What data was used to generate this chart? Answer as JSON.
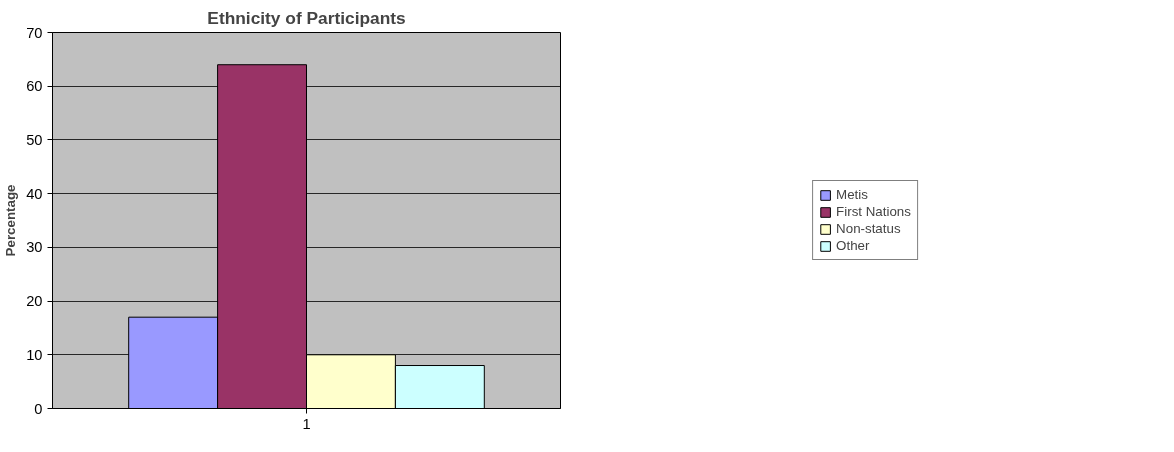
{
  "chart_data": {
    "type": "bar",
    "title": "Ethnicity of Participants",
    "ylabel": "Percentage",
    "categories": [
      "1"
    ],
    "series": [
      {
        "name": "Metis",
        "color": "#9999ff",
        "values": [
          17
        ]
      },
      {
        "name": "First Nations",
        "color": "#993366",
        "values": [
          64
        ]
      },
      {
        "name": "Non-status",
        "color": "#ffffcc",
        "values": [
          10
        ]
      },
      {
        "name": "Other",
        "color": "#ccffff",
        "values": [
          8
        ]
      }
    ],
    "ylim": [
      0,
      70
    ],
    "yticks": [
      0,
      10,
      20,
      30,
      40,
      50,
      60,
      70
    ],
    "grid": "y",
    "legend": "right"
  }
}
